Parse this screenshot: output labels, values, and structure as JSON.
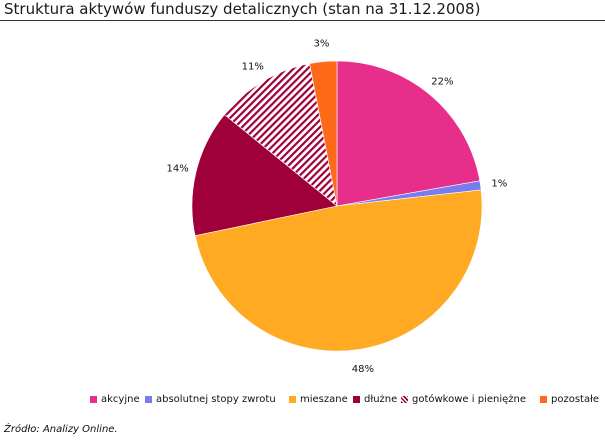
{
  "title": "Struktura aktywów funduszy detalicznych (stan na 31.12.2008)",
  "source": "Źródło: Analizy Online.",
  "chart_data": {
    "type": "pie",
    "slices": [
      {
        "label": "akcyjne",
        "value": 22,
        "display": "22%",
        "color": "#e62e8a",
        "pattern": "solid"
      },
      {
        "label": "absolutnej stopy zwrotu",
        "value": 1,
        "display": "1%",
        "color": "#7b7bf0",
        "pattern": "solid"
      },
      {
        "label": "mieszane",
        "value": 48,
        "display": "48%",
        "color": "#ffaa22",
        "pattern": "solid"
      },
      {
        "label": "dłużne",
        "value": 14,
        "display": "14%",
        "color": "#a0003a",
        "pattern": "solid"
      },
      {
        "label": "gotówkowe i pieniężne",
        "value": 11,
        "display": "11%",
        "color": "#a0003a",
        "pattern": "diagonal-stripes"
      },
      {
        "label": "pozostałe",
        "value": 3,
        "display": "3%",
        "color": "#ff6a1a",
        "pattern": "solid"
      }
    ],
    "legend_position": "bottom"
  }
}
